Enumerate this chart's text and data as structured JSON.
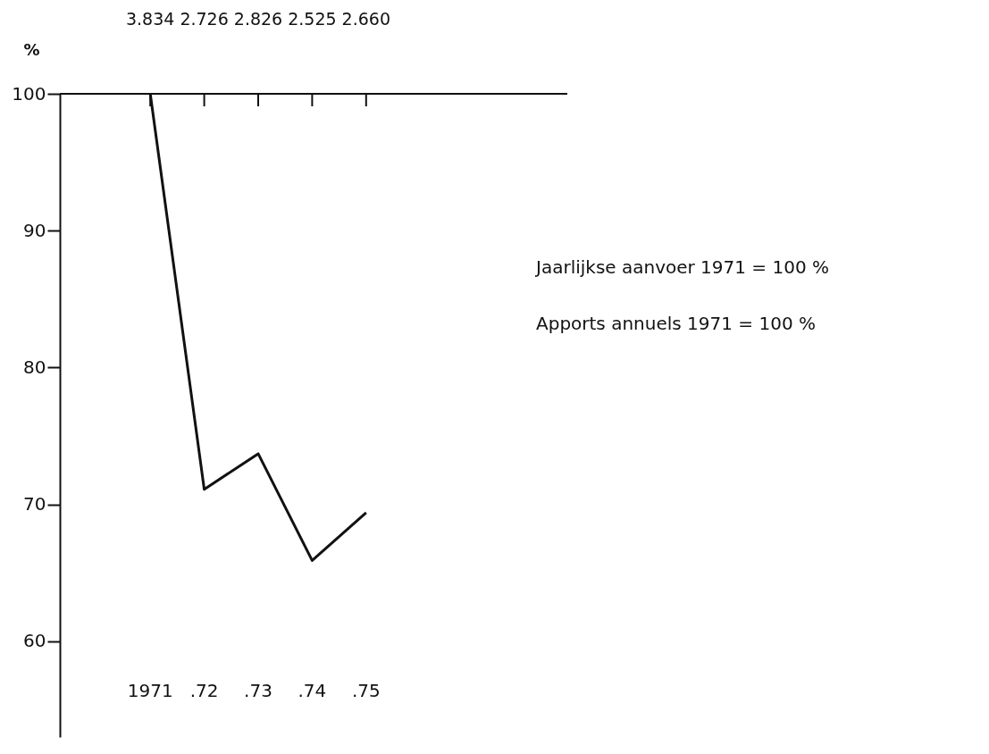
{
  "chart_data": {
    "type": "line",
    "categories": [
      "1971",
      ".72",
      ".73",
      ".74",
      ".75"
    ],
    "series": [
      {
        "color": "#111111",
        "values": [
          100,
          71.1,
          73.7,
          65.9,
          69.4
        ]
      }
    ],
    "ylabel": "%",
    "ylim": [
      53,
      100
    ],
    "yticks": [
      60,
      70,
      80,
      90,
      100
    ],
    "grid": false,
    "marker": "none",
    "line_style": "solid",
    "annotations": [
      "3.834",
      "2.726",
      "2.826",
      "2.525",
      "2.660",
      "Jaarlijkse aanvoer  1971 = 100 %",
      "Apports annuels  1971  =  100 %"
    ]
  }
}
